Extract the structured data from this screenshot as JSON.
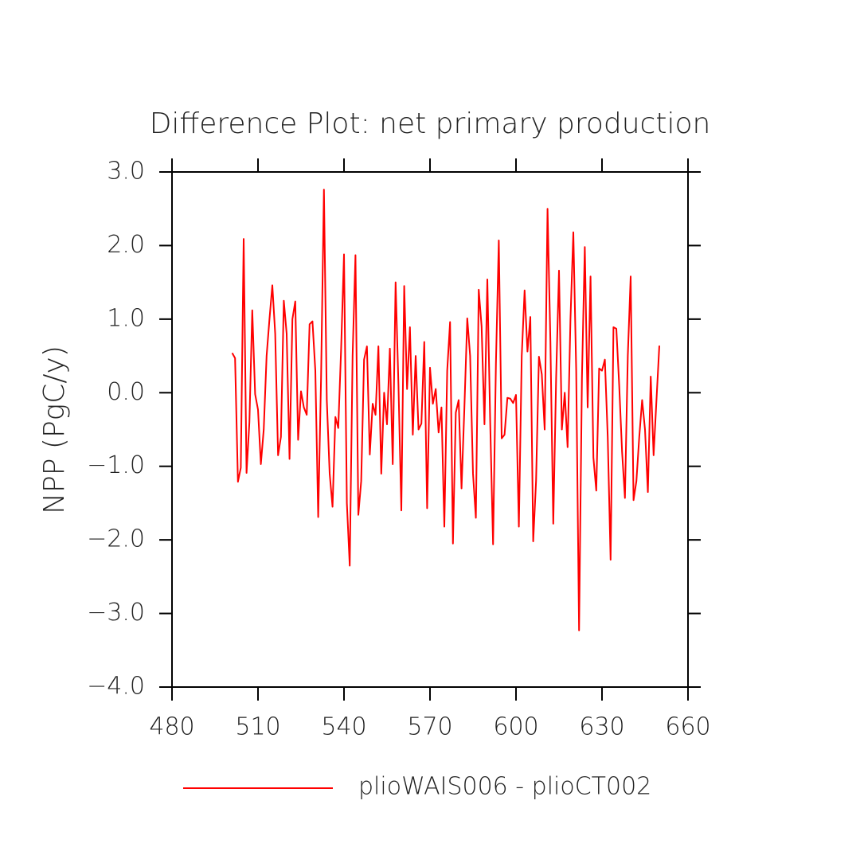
{
  "chart_data": {
    "type": "line",
    "title": "Difference Plot: net primary production",
    "y_label": "NPP  (PgC/y)",
    "x": [
      501,
      502,
      503,
      504,
      505,
      506,
      507,
      508,
      509,
      510,
      511,
      512,
      513,
      514,
      515,
      516,
      517,
      518,
      519,
      520,
      521,
      522,
      523,
      524,
      525,
      526,
      527,
      528,
      529,
      530,
      531,
      532,
      533,
      534,
      535,
      536,
      537,
      538,
      539,
      540,
      541,
      542,
      543,
      544,
      545,
      546,
      547,
      548,
      549,
      550,
      551,
      552,
      553,
      554,
      555,
      556,
      557,
      558,
      559,
      560,
      561,
      562,
      563,
      564,
      565,
      566,
      567,
      568,
      569,
      570,
      571,
      572,
      573,
      574,
      575,
      576,
      577,
      578,
      579,
      580,
      581,
      582,
      583,
      584,
      585,
      586,
      587,
      588,
      589,
      590,
      591,
      592,
      593,
      594,
      595,
      596,
      597,
      598,
      599,
      600,
      601,
      602,
      603,
      604,
      605,
      606,
      607,
      608,
      609,
      610,
      611,
      612,
      613,
      614,
      615,
      616,
      617,
      618,
      619,
      620,
      621,
      622,
      623,
      624,
      625,
      626,
      627,
      628,
      629,
      630,
      631,
      632,
      633,
      634,
      635,
      636,
      637,
      638,
      639,
      640,
      641,
      642,
      643,
      644,
      645,
      646,
      647,
      648,
      649,
      650
    ],
    "series": [
      {
        "name": "plioWAIS006 - plioCT002",
        "color": "#ff0000",
        "values": [
          0.54,
          0.47,
          -1.21,
          -1.02,
          2.09,
          -1.09,
          -0.4,
          1.12,
          -0.02,
          -0.23,
          -0.97,
          -0.5,
          0.5,
          1.0,
          1.46,
          0.8,
          -0.85,
          -0.6,
          1.25,
          0.8,
          -0.9,
          1.0,
          1.24,
          -0.64,
          0.02,
          -0.2,
          -0.3,
          0.93,
          0.97,
          0.3,
          -1.69,
          0.2,
          2.76,
          -0.1,
          -1.1,
          -1.55,
          -0.33,
          -0.48,
          0.6,
          1.88,
          -1.5,
          -2.35,
          0.5,
          1.87,
          -1.66,
          -1.2,
          0.45,
          0.63,
          -0.84,
          -0.15,
          -0.3,
          0.63,
          -1.1,
          0.0,
          -0.43,
          0.6,
          -0.97,
          1.5,
          0.1,
          -1.6,
          1.45,
          0.05,
          0.89,
          -0.57,
          0.5,
          -0.5,
          -0.42,
          0.69,
          -1.57,
          0.34,
          -0.15,
          0.05,
          -0.54,
          -0.2,
          -1.82,
          0.3,
          0.96,
          -2.05,
          -0.27,
          -0.1,
          -1.3,
          -0.2,
          1.01,
          0.5,
          -1.1,
          -1.7,
          1.4,
          0.9,
          -0.43,
          1.54,
          -0.4,
          -2.06,
          0.4,
          2.07,
          -0.62,
          -0.57,
          -0.07,
          -0.08,
          -0.14,
          -0.03,
          -1.82,
          0.5,
          1.39,
          0.56,
          1.03,
          -2.02,
          -1.2,
          0.49,
          0.25,
          -0.5,
          2.5,
          0.7,
          -1.78,
          0.2,
          1.66,
          -0.5,
          0.0,
          -0.74,
          1.0,
          2.18,
          0.3,
          -3.23,
          0.2,
          1.98,
          -0.2,
          1.58,
          -0.88,
          -1.33,
          0.33,
          0.3,
          0.45,
          -0.6,
          -2.27,
          0.89,
          0.87,
          0.1,
          -0.8,
          -1.43,
          0.5,
          1.58,
          -1.46,
          -1.2,
          -0.6,
          -0.1,
          -0.5,
          -1.35,
          0.22,
          -0.85,
          -0.1,
          0.64
        ]
      }
    ],
    "xlim": [
      480,
      660
    ],
    "xticks": [
      480,
      510,
      540,
      570,
      600,
      630,
      660
    ],
    "ylim": [
      -4,
      3
    ],
    "yticks": [
      {
        "value": -4,
        "label": "−4.0"
      },
      {
        "value": -3,
        "label": "−3.0"
      },
      {
        "value": -2,
        "label": "−2.0"
      },
      {
        "value": -1,
        "label": "−1.0"
      },
      {
        "value": 0,
        "label": "0.0"
      },
      {
        "value": 1,
        "label": "1.0"
      },
      {
        "value": 2,
        "label": "2.0"
      },
      {
        "value": 3,
        "label": "3.0"
      }
    ],
    "legend": "bottom"
  }
}
